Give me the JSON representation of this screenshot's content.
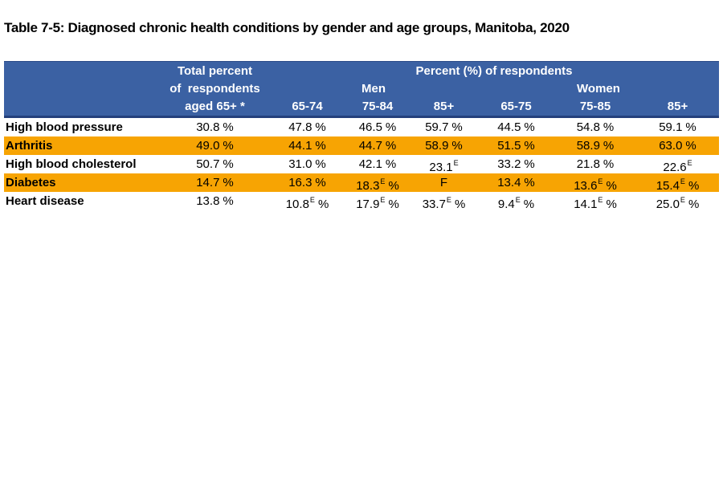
{
  "title": "Table 7-5: Diagnosed chronic health conditions by gender and age groups, Manitoba, 2020",
  "colors": {
    "header_bg": "#3B61A3",
    "header_border": "#24407C",
    "header_text": "#FFFFFF",
    "highlight_row_bg": "#F7A403",
    "body_text": "#000000"
  },
  "table": {
    "header": {
      "total_col_lines": [
        "Total percent",
        "of  respondents",
        "aged 65+ *"
      ],
      "group_label": "Percent (%) of respondents",
      "men_label": "Men",
      "women_label": "Women",
      "age_cols": [
        "65-74",
        "75-84",
        "85+",
        "65-75",
        "75-85",
        "85+"
      ]
    },
    "rows": [
      {
        "condition": "High blood pressure",
        "highlight": false,
        "values": [
          {
            "num": "30.8",
            "sup": "",
            "unit": "%"
          },
          {
            "num": "47.8",
            "sup": "",
            "unit": "%"
          },
          {
            "num": "46.5",
            "sup": "",
            "unit": "%"
          },
          {
            "num": "59.7",
            "sup": "",
            "unit": "%"
          },
          {
            "num": "44.5",
            "sup": "",
            "unit": "%"
          },
          {
            "num": "54.8",
            "sup": "",
            "unit": "%"
          },
          {
            "num": "59.1",
            "sup": "",
            "unit": "%"
          }
        ]
      },
      {
        "condition": "Arthritis",
        "highlight": true,
        "values": [
          {
            "num": "49.0",
            "sup": "",
            "unit": "%"
          },
          {
            "num": "44.1",
            "sup": "",
            "unit": "%"
          },
          {
            "num": "44.7",
            "sup": "",
            "unit": "%"
          },
          {
            "num": "58.9",
            "sup": "",
            "unit": "%"
          },
          {
            "num": "51.5",
            "sup": "",
            "unit": "%"
          },
          {
            "num": "58.9",
            "sup": "",
            "unit": "%"
          },
          {
            "num": "63.0",
            "sup": "",
            "unit": "%"
          }
        ]
      },
      {
        "condition": "High blood cholesterol",
        "highlight": false,
        "values": [
          {
            "num": "50.7",
            "sup": "",
            "unit": "%"
          },
          {
            "num": "31.0",
            "sup": "",
            "unit": "%"
          },
          {
            "num": "42.1",
            "sup": "",
            "unit": "%"
          },
          {
            "num": "23.1",
            "sup": "E",
            "unit": ""
          },
          {
            "num": "33.2",
            "sup": "",
            "unit": "%"
          },
          {
            "num": "21.8",
            "sup": "",
            "unit": "%"
          },
          {
            "num": "22.6",
            "sup": "E",
            "unit": ""
          }
        ]
      },
      {
        "condition": "Diabetes",
        "highlight": true,
        "values": [
          {
            "num": "14.7",
            "sup": "",
            "unit": "%"
          },
          {
            "num": "16.3",
            "sup": "",
            "unit": "%"
          },
          {
            "num": "18.3",
            "sup": "E",
            "unit": "%"
          },
          {
            "num": "F",
            "sup": "",
            "unit": ""
          },
          {
            "num": "13.4",
            "sup": "",
            "unit": "%"
          },
          {
            "num": "13.6",
            "sup": "E",
            "unit": "%"
          },
          {
            "num": "15.4",
            "sup": "E",
            "unit": "%"
          }
        ]
      },
      {
        "condition": "Heart disease",
        "highlight": false,
        "values": [
          {
            "num": "13.8",
            "sup": "",
            "unit": "%"
          },
          {
            "num": "10.8",
            "sup": "E",
            "unit": "%"
          },
          {
            "num": "17.9",
            "sup": "E",
            "unit": "%"
          },
          {
            "num": "33.7",
            "sup": "E",
            "unit": "%"
          },
          {
            "num": "9.4",
            "sup": "E",
            "unit": "%"
          },
          {
            "num": "14.1",
            "sup": "E",
            "unit": "%"
          },
          {
            "num": "25.0",
            "sup": "E",
            "unit": "%"
          }
        ]
      }
    ]
  }
}
